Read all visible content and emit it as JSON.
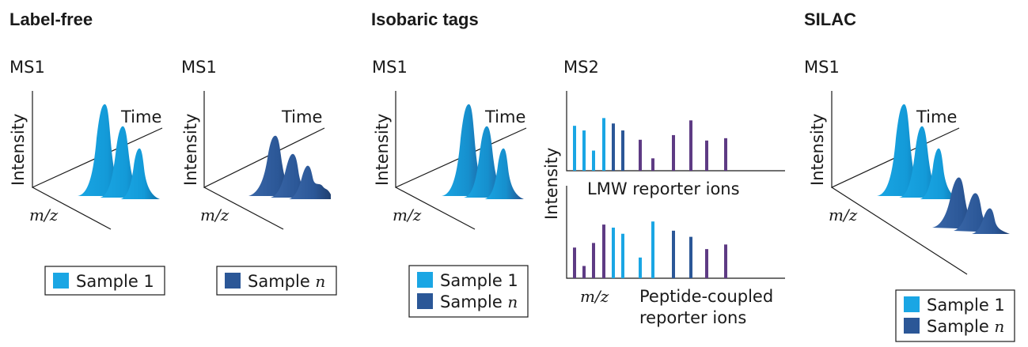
{
  "colors": {
    "sample1": "#1aa6e4",
    "sampleN": "#2b5797",
    "reporter": "#5e3b84",
    "text": "#1a1a1a"
  },
  "label_free": {
    "header": "Label-free",
    "panel1": {
      "ms": "MS1",
      "y_axis": "Intensity",
      "time": "Time",
      "x_axis": "m/z"
    },
    "panel2": {
      "ms": "MS1",
      "y_axis": "Intensity",
      "time": "Time",
      "x_axis": "m/z"
    },
    "legend1": {
      "text": "Sample 1"
    },
    "legend2": {
      "text": "Sample ",
      "italic": "n"
    }
  },
  "isobaric": {
    "header": "Isobaric tags",
    "ms1": {
      "ms": "MS1",
      "y_axis": "Intensity",
      "time": "Time",
      "x_axis": "m/z"
    },
    "legend": {
      "item1": "Sample 1",
      "item2": "Sample ",
      "item2_italic": "n"
    },
    "ms2": {
      "ms": "MS2",
      "y_axis": "Intensity",
      "top_caption": "LMW reporter ions",
      "bottom_x_axis": "m/z",
      "bottom_caption_line1": "Peptide-coupled",
      "bottom_caption_line2": "reporter ions",
      "top_bars": [
        {
          "h": 0.58,
          "s": "sample1"
        },
        {
          "h": 0.52,
          "s": "sample1"
        },
        {
          "h": 0.26,
          "s": "sample1"
        },
        {
          "h": 0.68,
          "s": "sample1"
        },
        {
          "h": 0.61,
          "s": "sampleN"
        },
        {
          "h": 0.52,
          "s": "sampleN"
        },
        {
          "h": 0.4,
          "s": "reporter"
        },
        {
          "h": 0.16,
          "s": "reporter"
        },
        {
          "h": 0.46,
          "s": "reporter"
        },
        {
          "h": 0.65,
          "s": "reporter"
        },
        {
          "h": 0.39,
          "s": "reporter"
        },
        {
          "h": 0.42,
          "s": "reporter"
        }
      ],
      "bottom_bars": [
        {
          "h": 0.4,
          "s": "reporter"
        },
        {
          "h": 0.16,
          "s": "reporter"
        },
        {
          "h": 0.46,
          "s": "reporter"
        },
        {
          "h": 0.7,
          "s": "reporter"
        },
        {
          "h": 0.66,
          "s": "sample1"
        },
        {
          "h": 0.58,
          "s": "sample1"
        },
        {
          "h": 0.27,
          "s": "sample1"
        },
        {
          "h": 0.74,
          "s": "sample1"
        },
        {
          "h": 0.62,
          "s": "sampleN"
        },
        {
          "h": 0.54,
          "s": "sampleN"
        },
        {
          "h": 0.38,
          "s": "reporter"
        },
        {
          "h": 0.44,
          "s": "reporter"
        }
      ]
    }
  },
  "silac": {
    "header": "SILAC",
    "ms1": {
      "ms": "MS1",
      "y_axis": "Intensity",
      "time": "Time",
      "x_axis": "m/z"
    },
    "legend": {
      "item1": "Sample 1",
      "item2": "Sample ",
      "item2_italic": "n"
    }
  }
}
